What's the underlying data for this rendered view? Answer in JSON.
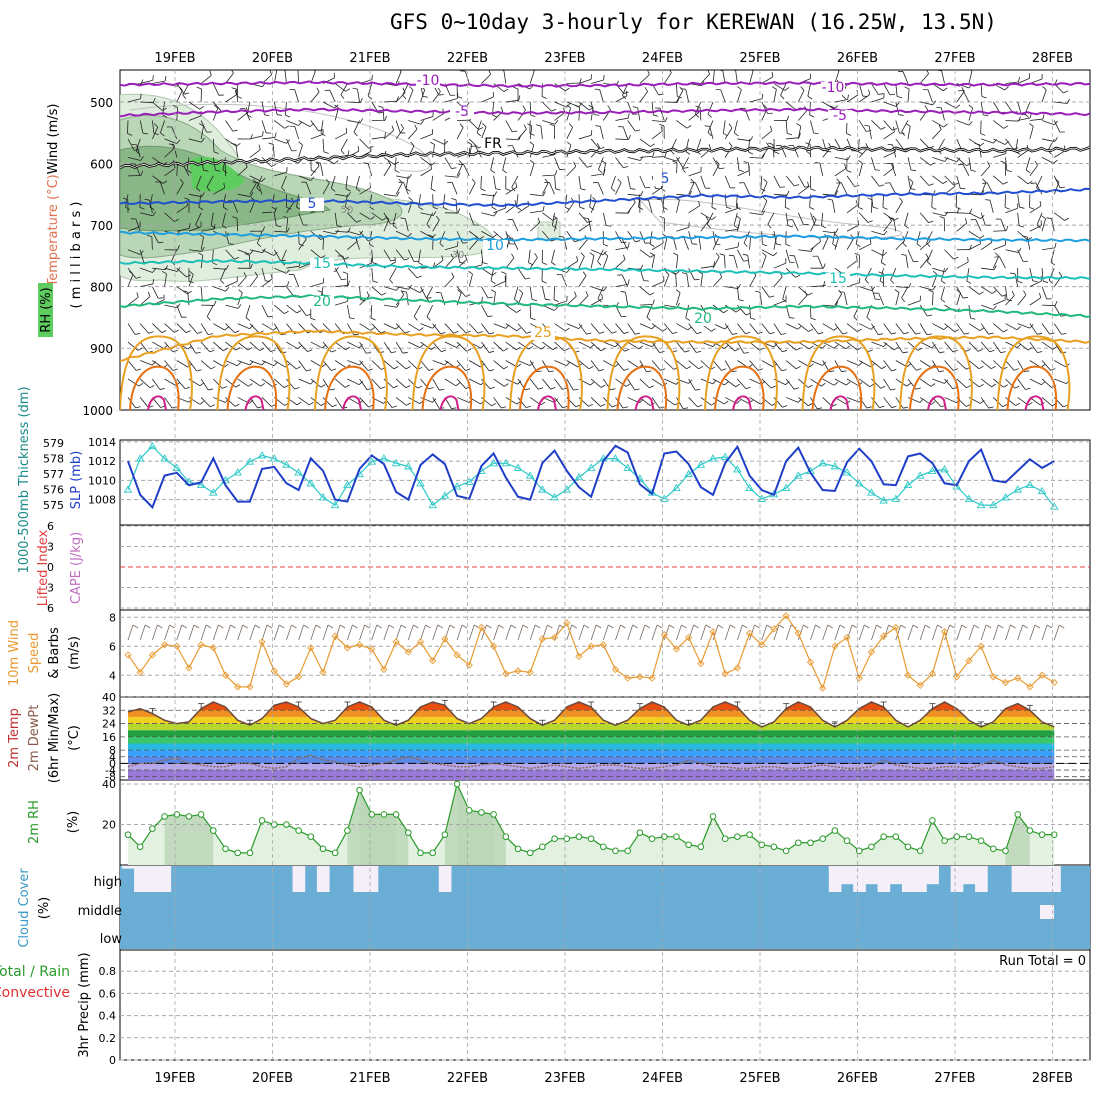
{
  "title": "GFS 0~10day 3-hourly for KEREWAN (16.25W, 13.5N)",
  "dates": [
    "19FEB",
    "20FEB",
    "21FEB",
    "22FEB",
    "23FEB",
    "24FEB",
    "25FEB",
    "26FEB",
    "27FEB",
    "28FEB"
  ],
  "run_total": "Run Total = 0",
  "colors": {
    "temp_purple": "#9a1fb8",
    "temp_blue": "#1f4fd0",
    "temp_lightblue": "#1d9ee0",
    "temp_teal": "#1cc0b8",
    "temp_green": "#20b87c",
    "temp_orange": "#e8a020",
    "temp_dark_orange": "#e87010",
    "temp_magenta": "#d0208a",
    "freezing": "#000000",
    "rh_green_light": "#dfeedd",
    "rh_green_mid": "#b9d6b7",
    "rh_green_dark": "#8ab787",
    "rh_green_bright": "#5fcc5f",
    "slp": "#1f3ec8",
    "thickness": "#2ec8c8",
    "wind10m": "#e89a30",
    "cloud": "#6aaed6",
    "cloud_gap": "#f4eff8",
    "rh2m": "#2a9a2a",
    "rh2m_fill": "#e3f1e0",
    "grid": "#a8a8a8"
  },
  "chart_data": [
    {
      "panel": "upper-air",
      "type": "contour",
      "ylabel_parts": [
        "RH (%)",
        "Temperature (°C)",
        "Wind (m/s)"
      ],
      "yaxis_label": "( m i l l i b a r s )",
      "y_ticks": [
        500,
        600,
        700,
        800,
        900,
        1000
      ],
      "ylim": [
        1000,
        450
      ],
      "isotherms": [
        {
          "value": -10,
          "label": "-10",
          "levels": [
            472,
            470,
            468,
            471,
            474,
            473,
            470,
            469,
            471,
            472,
            470
          ]
        },
        {
          "value": -5,
          "label": "-5",
          "levels": [
            522,
            516,
            512,
            515,
            518,
            517,
            514,
            512,
            515,
            517,
            520
          ]
        },
        {
          "value": 0,
          "label": "FR",
          "levels": [
            605,
            598,
            592,
            585,
            583,
            580,
            578,
            575,
            577,
            579,
            576
          ]
        },
        {
          "value": 5,
          "label": "5",
          "levels": [
            665,
            662,
            660,
            665,
            668,
            660,
            652,
            655,
            650,
            648,
            642
          ]
        },
        {
          "value": 10,
          "label": "10",
          "levels": [
            712,
            715,
            718,
            722,
            724,
            722,
            720,
            718,
            722,
            724,
            725
          ]
        },
        {
          "value": 15,
          "label": "15",
          "levels": [
            762,
            758,
            762,
            768,
            770,
            772,
            775,
            778,
            782,
            785,
            786
          ]
        },
        {
          "value": 20,
          "label": "20",
          "levels": [
            832,
            820,
            815,
            822,
            828,
            832,
            836,
            832,
            835,
            840,
            848
          ]
        },
        {
          "value": 25,
          "label": "25",
          "levels": [
            920,
            880,
            872,
            878,
            880,
            888,
            890,
            890,
            885,
            882,
            890
          ]
        }
      ],
      "rh_values": [
        30,
        50,
        70,
        90
      ]
    },
    {
      "panel": "slp-thickness",
      "type": "line",
      "ylabel_left": "1000-500mb Thickness (dm)",
      "ylabel_right": "SLP (mb)",
      "thickness_ticks": [
        575,
        576,
        577,
        578,
        579
      ],
      "slp_ticks": [
        1008,
        1010,
        1012,
        1014
      ],
      "series": [
        {
          "name": "SLP (mb)",
          "values": [
            1012,
            1008.5,
            1007.2,
            1010.5,
            1010.8,
            1009.5,
            1009.8,
            1012.3,
            1009.5,
            1007.8,
            1007.8,
            1011.2,
            1011.4,
            1009.7,
            1009.0,
            1012.3,
            1011.0,
            1008.0,
            1007.8,
            1011.2,
            1012.6,
            1011.7,
            1008.8,
            1008.0,
            1011.6,
            1012.7,
            1011.7,
            1008.4,
            1008.1,
            1011.5,
            1012.8,
            1010.3,
            1008.3,
            1008.0,
            1011.8,
            1013.1,
            1011.0,
            1009.3,
            1008.3,
            1012.0,
            1013.6,
            1012.9,
            1009.6,
            1008.6,
            1012.8,
            1013.0,
            1011.7,
            1009.3,
            1008.5,
            1011.8,
            1013.5,
            1010.5,
            1009.0,
            1008.5,
            1012.0,
            1013.4,
            1010.8,
            1009.0,
            1008.9,
            1011.9,
            1013.3,
            1012.0,
            1009.6,
            1009.5,
            1012.5,
            1012.8,
            1011.8,
            1009.7,
            1009.5,
            1012.0,
            1013.2,
            1010.0,
            1009.8,
            1011.0,
            1012.2,
            1011.3,
            1012.0
          ]
        },
        {
          "name": "1000-500mb Thickness (dm)",
          "values": [
            576.0,
            578.0,
            578.8,
            578.0,
            577.4,
            576.5,
            576.3,
            575.8,
            576.6,
            577.1,
            577.8,
            578.2,
            578.0,
            577.6,
            577.1,
            576.4,
            575.5,
            575.0,
            576.3,
            577.0,
            577.8,
            578.0,
            577.7,
            577.5,
            576.4,
            575.0,
            575.6,
            576.2,
            576.5,
            577.2,
            577.7,
            577.7,
            577.4,
            576.9,
            576.0,
            575.5,
            576.0,
            576.8,
            577.4,
            578.0,
            578.0,
            577.4,
            576.7,
            575.8,
            575.4,
            576.1,
            577.0,
            577.6,
            578.0,
            578.1,
            577.3,
            576.1,
            575.4,
            575.7,
            576.1,
            576.9,
            577.2,
            577.7,
            577.5,
            577.1,
            576.4,
            575.8,
            575.3,
            575.4,
            576.3,
            576.9,
            577.2,
            577.3,
            576.2,
            575.4,
            575.0,
            575.0,
            575.5,
            576.0,
            576.3,
            575.9,
            574.9
          ]
        }
      ]
    },
    {
      "panel": "lifted-index-cape",
      "type": "line",
      "ylabel_parts": [
        "Lifted Index",
        "CAPE (J/kg)"
      ],
      "y_ticks": [
        6,
        3,
        0,
        -3,
        -6
      ],
      "y_tick_labels": [
        "6",
        "3",
        "0",
        "3",
        "6"
      ],
      "series": [
        {
          "name": "Lifted Index",
          "values": []
        }
      ]
    },
    {
      "panel": "wind10m",
      "type": "line",
      "ylabel_parts": [
        "10m Wind",
        "Speed",
        "& Barbs",
        "(m/s)"
      ],
      "y_ticks": [
        4,
        6,
        8
      ],
      "ylim": [
        2.5,
        8.5
      ],
      "series": [
        {
          "name": "10m Wind Speed",
          "values": [
            5.4,
            4.2,
            5.4,
            6.1,
            6.0,
            4.5,
            6.1,
            5.9,
            4.0,
            3.2,
            3.2,
            6.3,
            4.3,
            3.4,
            3.9,
            5.9,
            4.2,
            6.7,
            5.9,
            6.1,
            5.8,
            4.4,
            6.3,
            5.6,
            6.3,
            5.0,
            6.5,
            5.4,
            4.7,
            7.3,
            6.0,
            4.1,
            4.3,
            4.2,
            6.5,
            6.6,
            7.6,
            5.3,
            6.0,
            6.1,
            4.4,
            3.8,
            3.9,
            3.8,
            6.8,
            5.8,
            6.6,
            4.8,
            7.0,
            4.1,
            4.5,
            6.9,
            6.1,
            7.2,
            8.1,
            6.9,
            4.9,
            3.1,
            6.0,
            6.6,
            3.8,
            5.6,
            6.7,
            7.3,
            4.0,
            3.3,
            4.1,
            7.0,
            3.9,
            5.0,
            6.0,
            3.9,
            3.5,
            3.8,
            3.2,
            4.0,
            3.5
          ]
        }
      ]
    },
    {
      "panel": "temperature",
      "type": "line",
      "ylabel_parts": [
        "2m Temp",
        "2m DewPt",
        "(6hr Min/Max)",
        "(°C)"
      ],
      "y_ticks": [
        -8,
        -4,
        0,
        4,
        8,
        16,
        24,
        32,
        40
      ],
      "ylim": [
        -10,
        40
      ],
      "series": [
        {
          "name": "2m Temp",
          "values": [
            31,
            33,
            30,
            26,
            24,
            25,
            33,
            37,
            34,
            26,
            23,
            27,
            35,
            37,
            34,
            27,
            24,
            26,
            34,
            37,
            34,
            26,
            23,
            26,
            34,
            37,
            35,
            27,
            24,
            27,
            34,
            37,
            34,
            27,
            23,
            26,
            34,
            37,
            34,
            26,
            23,
            26,
            33,
            37,
            34,
            26,
            23,
            26,
            34,
            37,
            34,
            26,
            22,
            25,
            33,
            37,
            34,
            26,
            22,
            26,
            33,
            37,
            34,
            26,
            22,
            26,
            33,
            37,
            33,
            26,
            22,
            25,
            33,
            36,
            32,
            25,
            22
          ]
        },
        {
          "name": "2m DewPt",
          "values": [
            -2,
            0,
            0,
            2,
            3,
            0,
            -1,
            -2,
            -2,
            0,
            0,
            -2,
            -3,
            -2,
            3,
            5,
            2,
            1,
            -1,
            -2,
            -1,
            0,
            2,
            4,
            2,
            0,
            -1,
            -2,
            -2,
            -1,
            0,
            -1,
            -2,
            -3,
            -2,
            -1,
            -2,
            -3,
            -2,
            -1,
            -1,
            -2,
            -3,
            -3,
            -2,
            -1,
            2,
            0,
            -2,
            -2,
            -3,
            -3,
            -2,
            -2,
            -3,
            -3,
            -2,
            -1,
            -2,
            -3,
            -3,
            -2,
            2,
            -1,
            -2,
            -3,
            -3,
            -2,
            -2,
            -3,
            -1,
            2,
            -1,
            -2,
            -3,
            -3,
            -2
          ]
        }
      ]
    },
    {
      "panel": "rh2m",
      "type": "area",
      "ylabel_parts": [
        "2m RH",
        "(%)"
      ],
      "y_ticks": [
        20,
        40
      ],
      "ylim": [
        0,
        42
      ],
      "series": [
        {
          "name": "2m RH",
          "values": [
            15,
            9,
            18,
            24,
            25,
            24,
            25,
            17,
            8,
            6,
            6,
            22,
            20,
            20,
            17,
            14,
            8,
            6,
            17,
            37,
            25,
            25,
            25,
            16,
            6,
            6,
            15,
            40,
            27,
            26,
            25,
            14,
            8,
            6,
            9,
            13,
            13,
            14,
            13,
            9,
            7,
            7,
            16,
            13,
            14,
            14,
            10,
            9,
            24,
            13,
            14,
            15,
            10,
            9,
            7,
            11,
            11,
            13,
            17,
            12,
            7,
            9,
            14,
            14,
            9,
            7,
            22,
            12,
            14,
            14,
            12,
            8,
            7,
            25,
            17,
            15,
            15
          ]
        }
      ]
    },
    {
      "panel": "cloud-cover",
      "type": "area",
      "ylabel_parts": [
        "Cloud Cover",
        "(%)"
      ],
      "levels": [
        "high",
        "middle",
        "low"
      ],
      "series": [
        {
          "name": "high",
          "values": [
            90,
            0,
            0,
            0,
            100,
            100,
            100,
            100,
            100,
            100,
            100,
            100,
            100,
            100,
            0,
            100,
            0,
            100,
            100,
            0,
            0,
            100,
            100,
            100,
            100,
            100,
            0,
            100,
            100,
            100,
            100,
            100,
            100,
            100,
            100,
            100,
            100,
            100,
            100,
            100,
            100,
            100,
            100,
            100,
            100,
            100,
            100,
            100,
            100,
            100,
            100,
            100,
            100,
            100,
            100,
            100,
            100,
            100,
            0,
            30,
            0,
            30,
            0,
            30,
            0,
            0,
            30,
            100,
            0,
            30,
            0,
            100,
            100,
            0,
            0,
            0,
            0
          ]
        }
      ]
    },
    {
      "panel": "precip",
      "type": "bar",
      "ylabel_parts": [
        "Total / Rain",
        "Convective",
        "3hr Precip (mm)"
      ],
      "y_ticks": [
        0,
        0.2,
        0.4,
        0.6,
        0.8
      ],
      "ylim": [
        0,
        1
      ],
      "series": [
        {
          "name": "Total / Rain",
          "values": []
        },
        {
          "name": "Convective",
          "values": []
        }
      ]
    }
  ]
}
